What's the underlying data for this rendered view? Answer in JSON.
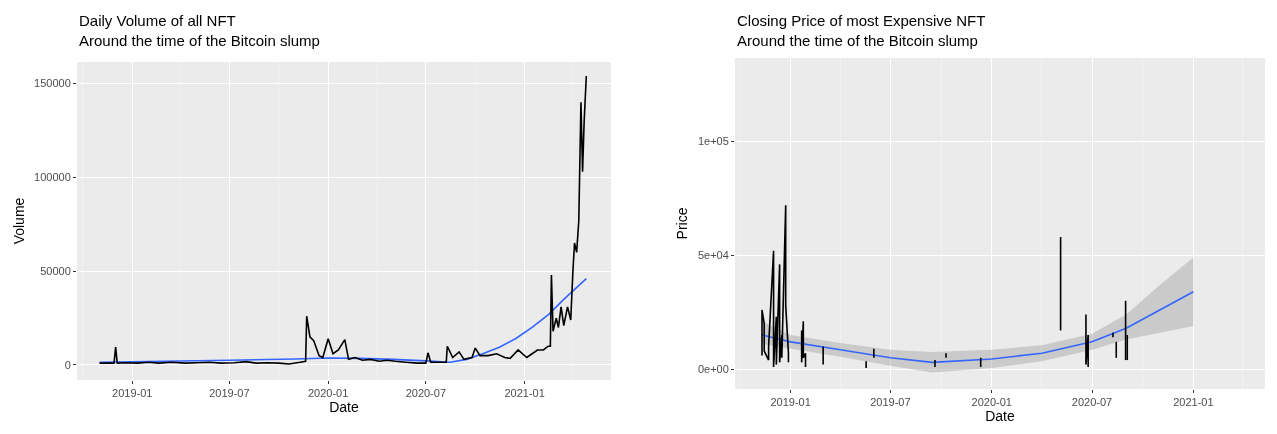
{
  "chart_data": [
    {
      "type": "line",
      "title": "Daily Volume of all NFT",
      "subtitle": "Around the time of the Bitcoin slump",
      "xlabel": "Date",
      "ylabel": "Volume",
      "xlim": [
        "2018-09-20",
        "2021-06-11"
      ],
      "ylim": [
        -8000,
        161500
      ],
      "xticks": [
        "2019-01",
        "2019-07",
        "2020-01",
        "2020-07",
        "2021-01"
      ],
      "yticks": [
        0,
        50000,
        100000,
        150000
      ],
      "grid": true,
      "series": [
        {
          "color": "#000000",
          "x": [
            "2018-11-01",
            "2018-11-15",
            "2018-11-28",
            "2018-12-01",
            "2018-12-04",
            "2018-12-20",
            "2019-01-10",
            "2019-02-01",
            "2019-02-20",
            "2019-03-15",
            "2019-04-10",
            "2019-05-01",
            "2019-05-25",
            "2019-06-15",
            "2019-07-10",
            "2019-08-01",
            "2019-08-20",
            "2019-09-10",
            "2019-10-01",
            "2019-10-20",
            "2019-11-10",
            "2019-11-20",
            "2019-11-22",
            "2019-11-28",
            "2019-12-05",
            "2019-12-15",
            "2019-12-22",
            "2020-01-01",
            "2020-01-10",
            "2020-01-20",
            "2020-02-01",
            "2020-02-08",
            "2020-02-20",
            "2020-03-05",
            "2020-03-20",
            "2020-04-05",
            "2020-04-20",
            "2020-05-05",
            "2020-05-25",
            "2020-06-15",
            "2020-07-01",
            "2020-07-05",
            "2020-07-10",
            "2020-07-25",
            "2020-08-08",
            "2020-08-10",
            "2020-08-20",
            "2020-09-01",
            "2020-09-10",
            "2020-09-25",
            "2020-10-01",
            "2020-10-10",
            "2020-10-25",
            "2020-11-10",
            "2020-11-25",
            "2020-12-05",
            "2020-12-20",
            "2021-01-05",
            "2021-01-15",
            "2021-01-25",
            "2021-02-05",
            "2021-02-14",
            "2021-02-18",
            "2021-02-20",
            "2021-02-23",
            "2021-03-01",
            "2021-03-05",
            "2021-03-10",
            "2021-03-15",
            "2021-03-22",
            "2021-03-28",
            "2021-04-01",
            "2021-04-04",
            "2021-04-08",
            "2021-04-12",
            "2021-04-16",
            "2021-04-19",
            "2021-04-22",
            "2021-04-26"
          ],
          "values": [
            1000,
            1000,
            1000,
            9500,
            1000,
            1200,
            1000,
            1500,
            1000,
            1500,
            1000,
            1200,
            1500,
            1000,
            1200,
            1800,
            1000,
            1200,
            1000,
            500,
            1500,
            2000,
            26000,
            15000,
            13000,
            5000,
            4000,
            14000,
            6000,
            8000,
            13500,
            3000,
            4000,
            2500,
            3000,
            2000,
            2500,
            2000,
            1500,
            1000,
            1000,
            6500,
            1500,
            1500,
            1500,
            10000,
            4000,
            7000,
            3000,
            4000,
            9000,
            5000,
            5000,
            6000,
            4000,
            3500,
            8000,
            4000,
            6000,
            8000,
            8000,
            10000,
            10000,
            48000,
            18000,
            25000,
            20000,
            31000,
            21000,
            31000,
            24000,
            50000,
            65000,
            60000,
            77000,
            140000,
            103000,
            130000,
            154000
          ]
        },
        {
          "color": "#3366ff",
          "x": [
            "2018-11-01",
            "2019-03-01",
            "2019-07-01",
            "2019-11-01",
            "2020-01-01",
            "2020-03-01",
            "2020-05-01",
            "2020-07-01",
            "2020-08-15",
            "2020-09-15",
            "2020-10-15",
            "2020-11-15",
            "2020-12-15",
            "2021-01-15",
            "2021-02-15",
            "2021-03-15",
            "2021-04-26"
          ],
          "values": [
            1500,
            2000,
            2500,
            3200,
            3700,
            3500,
            3000,
            2200,
            1500,
            3000,
            6000,
            9500,
            14000,
            20000,
            27000,
            35000,
            46000
          ]
        }
      ]
    },
    {
      "type": "line",
      "title": "Closing Price of most Expensive NFT",
      "subtitle": "Around the time of the Bitcoin slump",
      "xlabel": "Date",
      "ylabel": "Price",
      "xlim": [
        "2018-09-22",
        "2021-05-11"
      ],
      "ylim": [
        -8700,
        136600
      ],
      "xticks": [
        "2019-01",
        "2019-07",
        "2020-01",
        "2020-07",
        "2021-01"
      ],
      "yticks": [
        {
          "value": 0,
          "label": "0e+00"
        },
        {
          "value": 50000,
          "label": "5e+04"
        },
        {
          "value": 100000,
          "label": "1e+05"
        }
      ],
      "grid": true,
      "series": [
        {
          "color": "#000000",
          "x": [
            "2018-11-10",
            "2018-11-10",
            "2018-11-14",
            "2018-11-14",
            "2018-11-22",
            "2018-11-22",
            "2018-12-01",
            "2018-12-01",
            "2018-12-06",
            "2018-12-06",
            "2018-12-12",
            "2018-12-12",
            "2018-12-16",
            "2018-12-16",
            "2018-12-23",
            "2018-12-23",
            "2018-12-28",
            "2018-12-28",
            "2019-01-03",
            "2019-01-21",
            "2019-01-21",
            "2019-01-24",
            "2019-01-24",
            "2019-01-28",
            "2019-01-28",
            "2019-02-10",
            "2019-03-01",
            "2019-03-01",
            "2019-04-10",
            "2019-05-18",
            "2019-05-18",
            "2019-05-25",
            "2019-06-01",
            "2019-06-01",
            "2019-07-01",
            "2019-09-20",
            "2019-09-20",
            "2019-09-30",
            "2019-10-10",
            "2019-10-10",
            "2019-11-10",
            "2019-12-12",
            "2019-12-12",
            "2020-04-15",
            "2020-05-05",
            "2020-05-05",
            "2020-05-15",
            "2020-06-20",
            "2020-06-20",
            "2020-06-24",
            "2020-06-24",
            "2020-07-10",
            "2020-08-08",
            "2020-08-08",
            "2020-08-11",
            "2020-08-14",
            "2020-08-14",
            "2020-08-20",
            "2020-08-31",
            "2020-08-31",
            "2020-09-02",
            "2020-09-03",
            "2020-09-03"
          ],
          "values": [
            6000,
            26000,
            20000,
            8000,
            4000,
            10000,
            52000,
            1000,
            23000,
            2000,
            46000,
            3000,
            15000,
            5000,
            72000,
            28000,
            7000,
            3000,
            null,
            17000,
            3000,
            21000,
            5000,
            7000,
            1000,
            null,
            10000,
            2000,
            null,
            3500,
            500,
            null,
            9000,
            5000,
            null,
            4000,
            1000,
            null,
            7000,
            5000,
            null,
            5000,
            1000,
            null,
            58000,
            17000,
            null,
            24000,
            2000,
            15000,
            1000,
            null,
            16000,
            14000,
            null,
            12000,
            5000,
            null,
            30000,
            4000,
            null,
            15000,
            4000
          ]
        },
        {
          "color": "#3366ff",
          "x": [
            "2018-11-10",
            "2019-01-01",
            "2019-04-01",
            "2019-07-01",
            "2019-09-15",
            "2020-01-01",
            "2020-04-01",
            "2020-07-01",
            "2020-09-01",
            "2020-11-01",
            "2021-01-01"
          ],
          "values": [
            15000,
            12000,
            8500,
            5000,
            3000,
            4500,
            7000,
            12000,
            18000,
            26000,
            34000
          ],
          "lower": [
            11000,
            9000,
            5500,
            1500,
            -1500,
            500,
            3500,
            8500,
            13000,
            16000,
            19000
          ],
          "upper": [
            21000,
            15000,
            11500,
            8500,
            7500,
            8500,
            10500,
            15500,
            24000,
            37000,
            49000
          ]
        }
      ]
    }
  ]
}
